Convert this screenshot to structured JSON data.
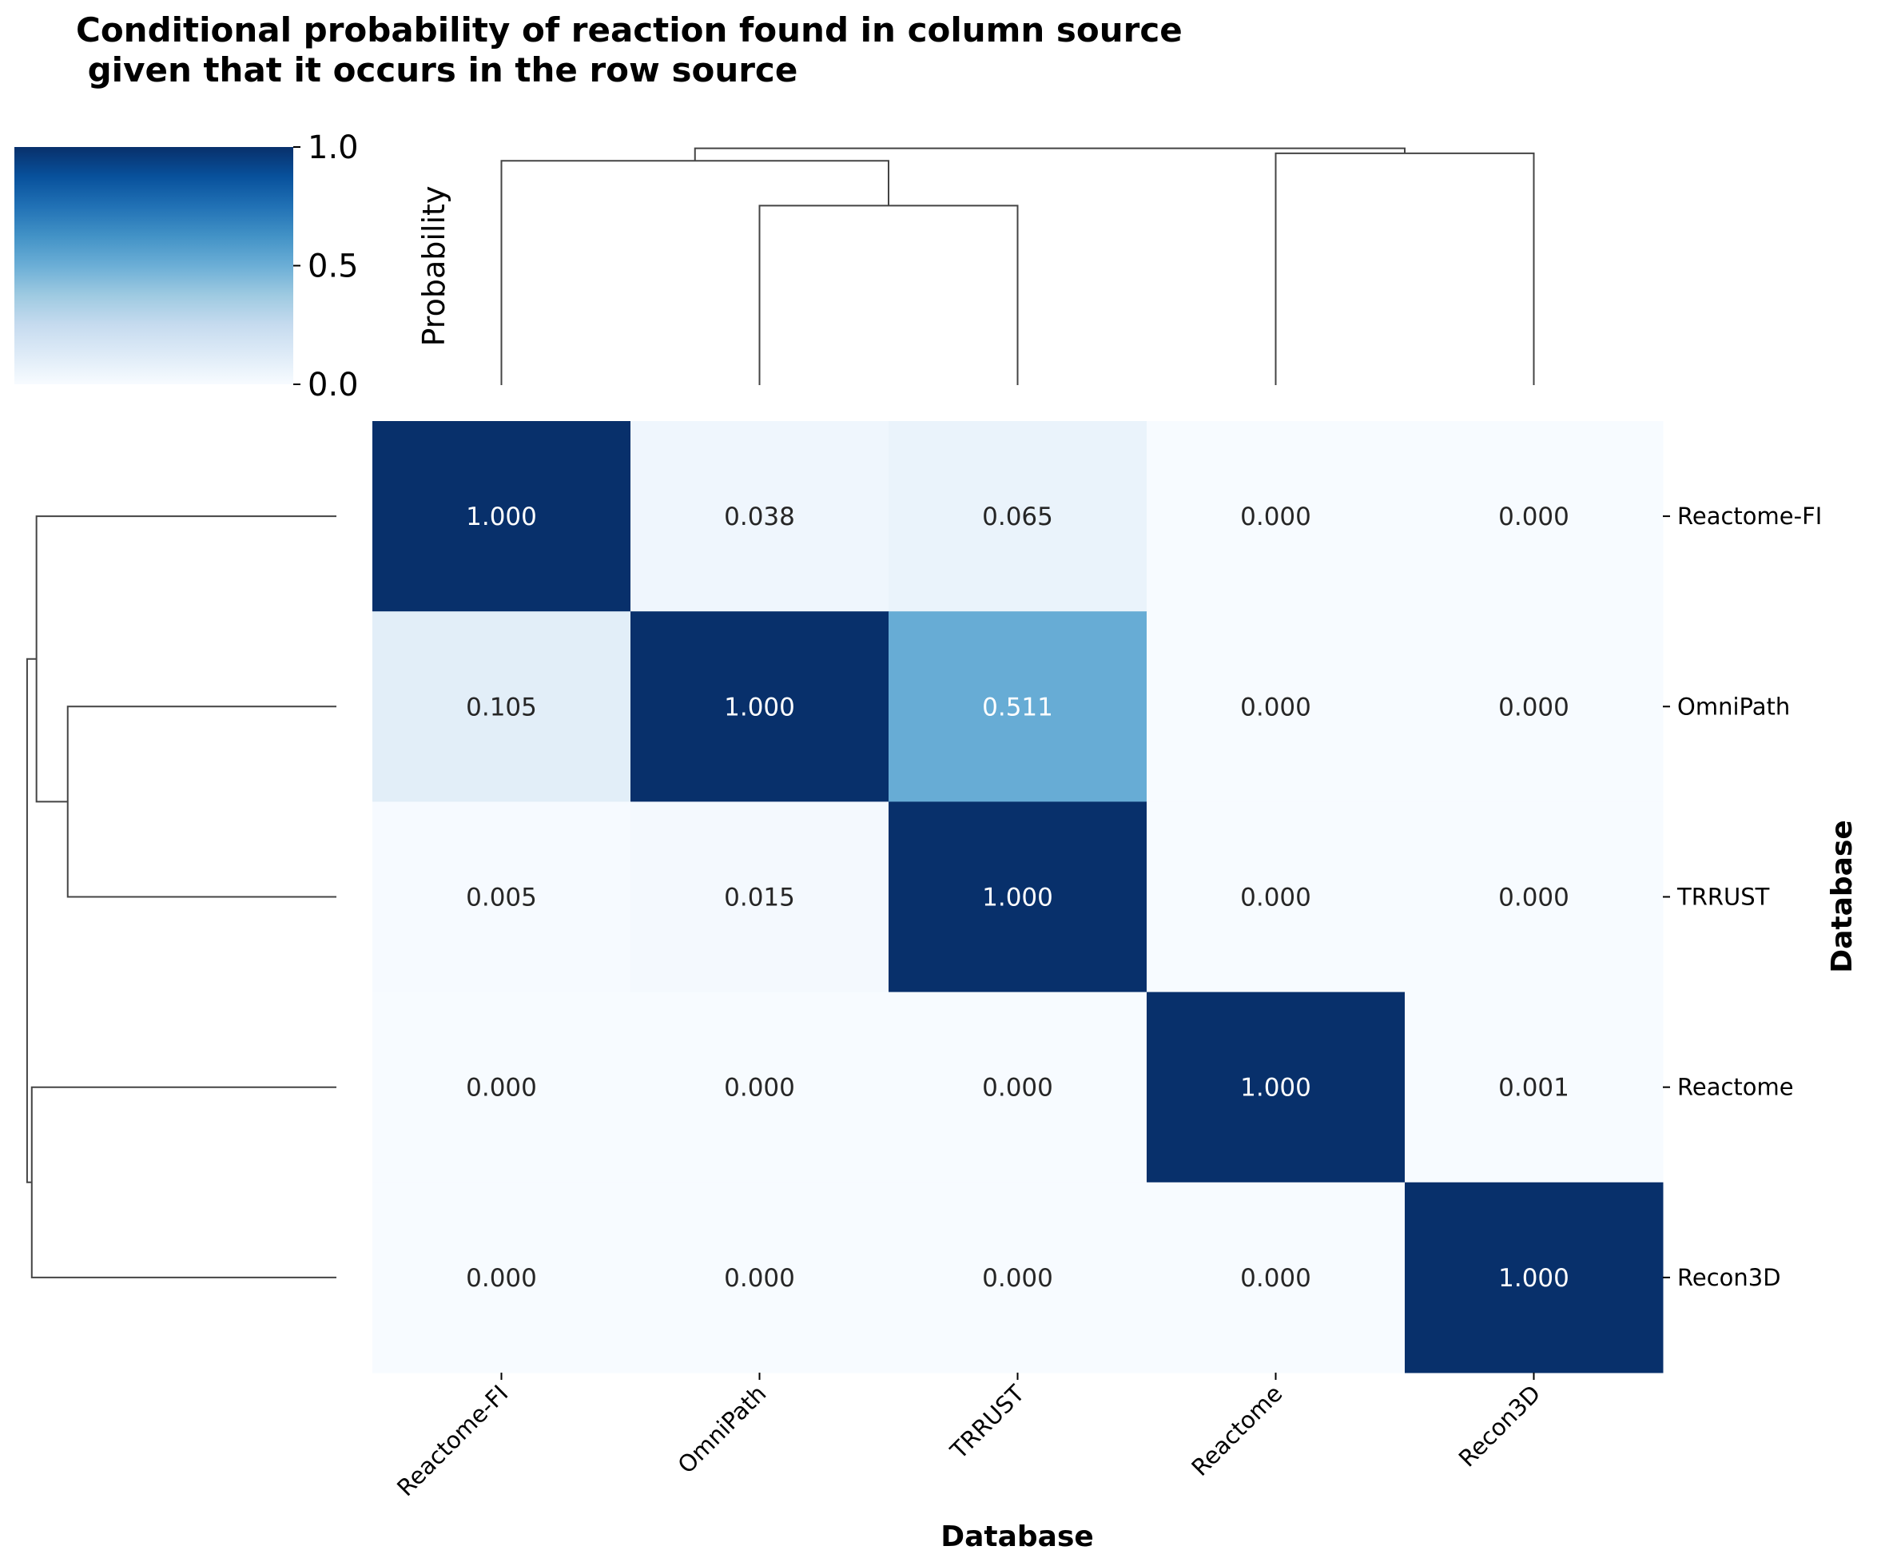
{
  "chart_data": {
    "type": "heatmap",
    "title_line1": "Conditional probability of reaction found in column source",
    "title_line2": " given that it occurs in the row source",
    "xlabel": "Database",
    "ylabel": "Database",
    "row_labels": [
      "Reactome-FI",
      "OmniPath",
      "TRRUST",
      "Reactome",
      "Recon3D"
    ],
    "col_labels": [
      "Reactome-FI",
      "OmniPath",
      "TRRUST",
      "Reactome",
      "Recon3D"
    ],
    "values": [
      [
        1.0,
        0.038,
        0.065,
        0.0,
        0.0
      ],
      [
        0.105,
        1.0,
        0.511,
        0.0,
        0.0
      ],
      [
        0.005,
        0.015,
        1.0,
        0.0,
        0.0
      ],
      [
        0.0,
        0.0,
        0.0,
        1.0,
        0.001
      ],
      [
        0.0,
        0.0,
        0.0,
        0.0,
        1.0
      ]
    ],
    "annotation_format": "0.000",
    "colormap": "Blues",
    "colormap_low": "#f7fbff",
    "colormap_high": "#08306b",
    "colorbar": {
      "label": "Probability",
      "range": [
        0.0,
        1.0
      ],
      "ticks": [
        "0.0",
        "0.5",
        "1.0"
      ],
      "placement": "top-left"
    },
    "col_dendrogram": {
      "placement": "top",
      "merges": [
        {
          "left": "OmniPath",
          "right": "TRRUST",
          "height": 0.72
        },
        {
          "left": "Reactome-FI",
          "right": "OmniPath+TRRUST",
          "height": 0.9
        },
        {
          "left": "Reactome",
          "right": "Recon3D",
          "height": 0.93
        },
        {
          "left": "left-cluster",
          "right": "right-cluster",
          "height": 0.95
        }
      ]
    },
    "row_dendrogram": {
      "placement": "left",
      "merges": [
        {
          "top": "OmniPath",
          "bottom": "TRRUST",
          "height": 0.86
        },
        {
          "top": "Reactome-FI",
          "bottom": "OmniPath+TRRUST",
          "height": 0.96
        },
        {
          "top": "Reactome",
          "bottom": "Recon3D",
          "height": 0.975
        },
        {
          "top": "upper-cluster",
          "bottom": "lower-cluster",
          "height": 0.99
        }
      ]
    },
    "grid": false
  }
}
